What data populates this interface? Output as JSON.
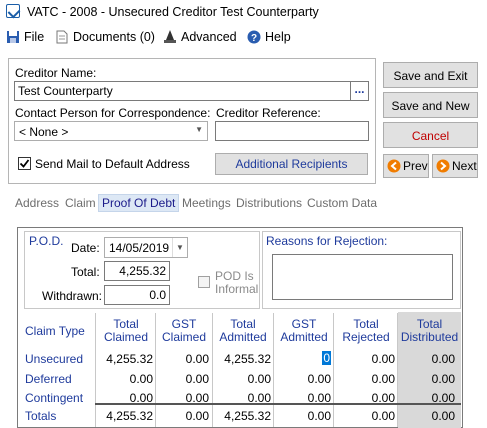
{
  "window": {
    "title": "VATC - 2008 - Unsecured Creditor Test Counterparty"
  },
  "menu": [
    {
      "label": "File",
      "icon": "save-icon"
    },
    {
      "label": "Documents (0)",
      "icon": "document-icon"
    },
    {
      "label": "Advanced",
      "icon": "wizard-icon"
    },
    {
      "label": "Help",
      "icon": "help-icon"
    }
  ],
  "creditor": {
    "name_label": "Creditor Name:",
    "name_value": "Test Counterparty",
    "browse_label": "...",
    "contact_label": "Contact Person for Correspondence:",
    "contact_value": "< None >",
    "reference_label": "Creditor Reference:",
    "reference_value": "",
    "send_mail_label": "Send Mail to Default Address",
    "send_mail_checked": true,
    "additional_recipients_label": "Additional Recipients"
  },
  "buttons": {
    "save_exit": "Save and Exit",
    "save_new": "Save and New",
    "cancel": "Cancel",
    "prev": "Prev",
    "next": "Next"
  },
  "tabs": [
    "Address",
    "Claim",
    "Proof Of Debt",
    "Meetings",
    "Distributions",
    "Custom Data"
  ],
  "active_tab": "Proof Of Debt",
  "pod": {
    "section_label": "P.O.D.",
    "date_label": "Date:",
    "date_value": "14/05/2019",
    "total_label": "Total:",
    "total_value": "4,255.32",
    "withdrawn_label": "Withdrawn:",
    "withdrawn_value": "0.0",
    "informal_label_1": "POD Is",
    "informal_label_2": "Informal",
    "informal_checked": false,
    "reasons_label": "Reasons for Rejection:",
    "reasons_value": ""
  },
  "table": {
    "headers": [
      [
        "Claim Type",
        ""
      ],
      [
        "Total",
        "Claimed"
      ],
      [
        "GST",
        "Claimed"
      ],
      [
        "Total",
        "Admitted"
      ],
      [
        "GST",
        "Admitted"
      ],
      [
        "Total",
        "Rejected"
      ],
      [
        "Total",
        "Distributed"
      ]
    ],
    "rows": [
      {
        "type": "Unsecured",
        "values": [
          "4,255.32",
          "0.00",
          "4,255.32",
          "0",
          "0.00",
          "0.00"
        ]
      },
      {
        "type": "Deferred",
        "values": [
          "0.00",
          "0.00",
          "0.00",
          "0.00",
          "0.00",
          "0.00"
        ]
      },
      {
        "type": "Contingent",
        "values": [
          "0.00",
          "0.00",
          "0.00",
          "0.00",
          "0.00",
          "0.00"
        ]
      }
    ],
    "totals": {
      "type": "Totals",
      "values": [
        "4,255.32",
        "0.00",
        "4,255.32",
        "0.00",
        "0.00",
        "0.00"
      ]
    }
  },
  "colors": {
    "accent_blue": "#1f3b9c",
    "cancel_red": "#c00000",
    "nav_orange": "#f07c00",
    "distributed_grey": "#d9d9d9"
  }
}
